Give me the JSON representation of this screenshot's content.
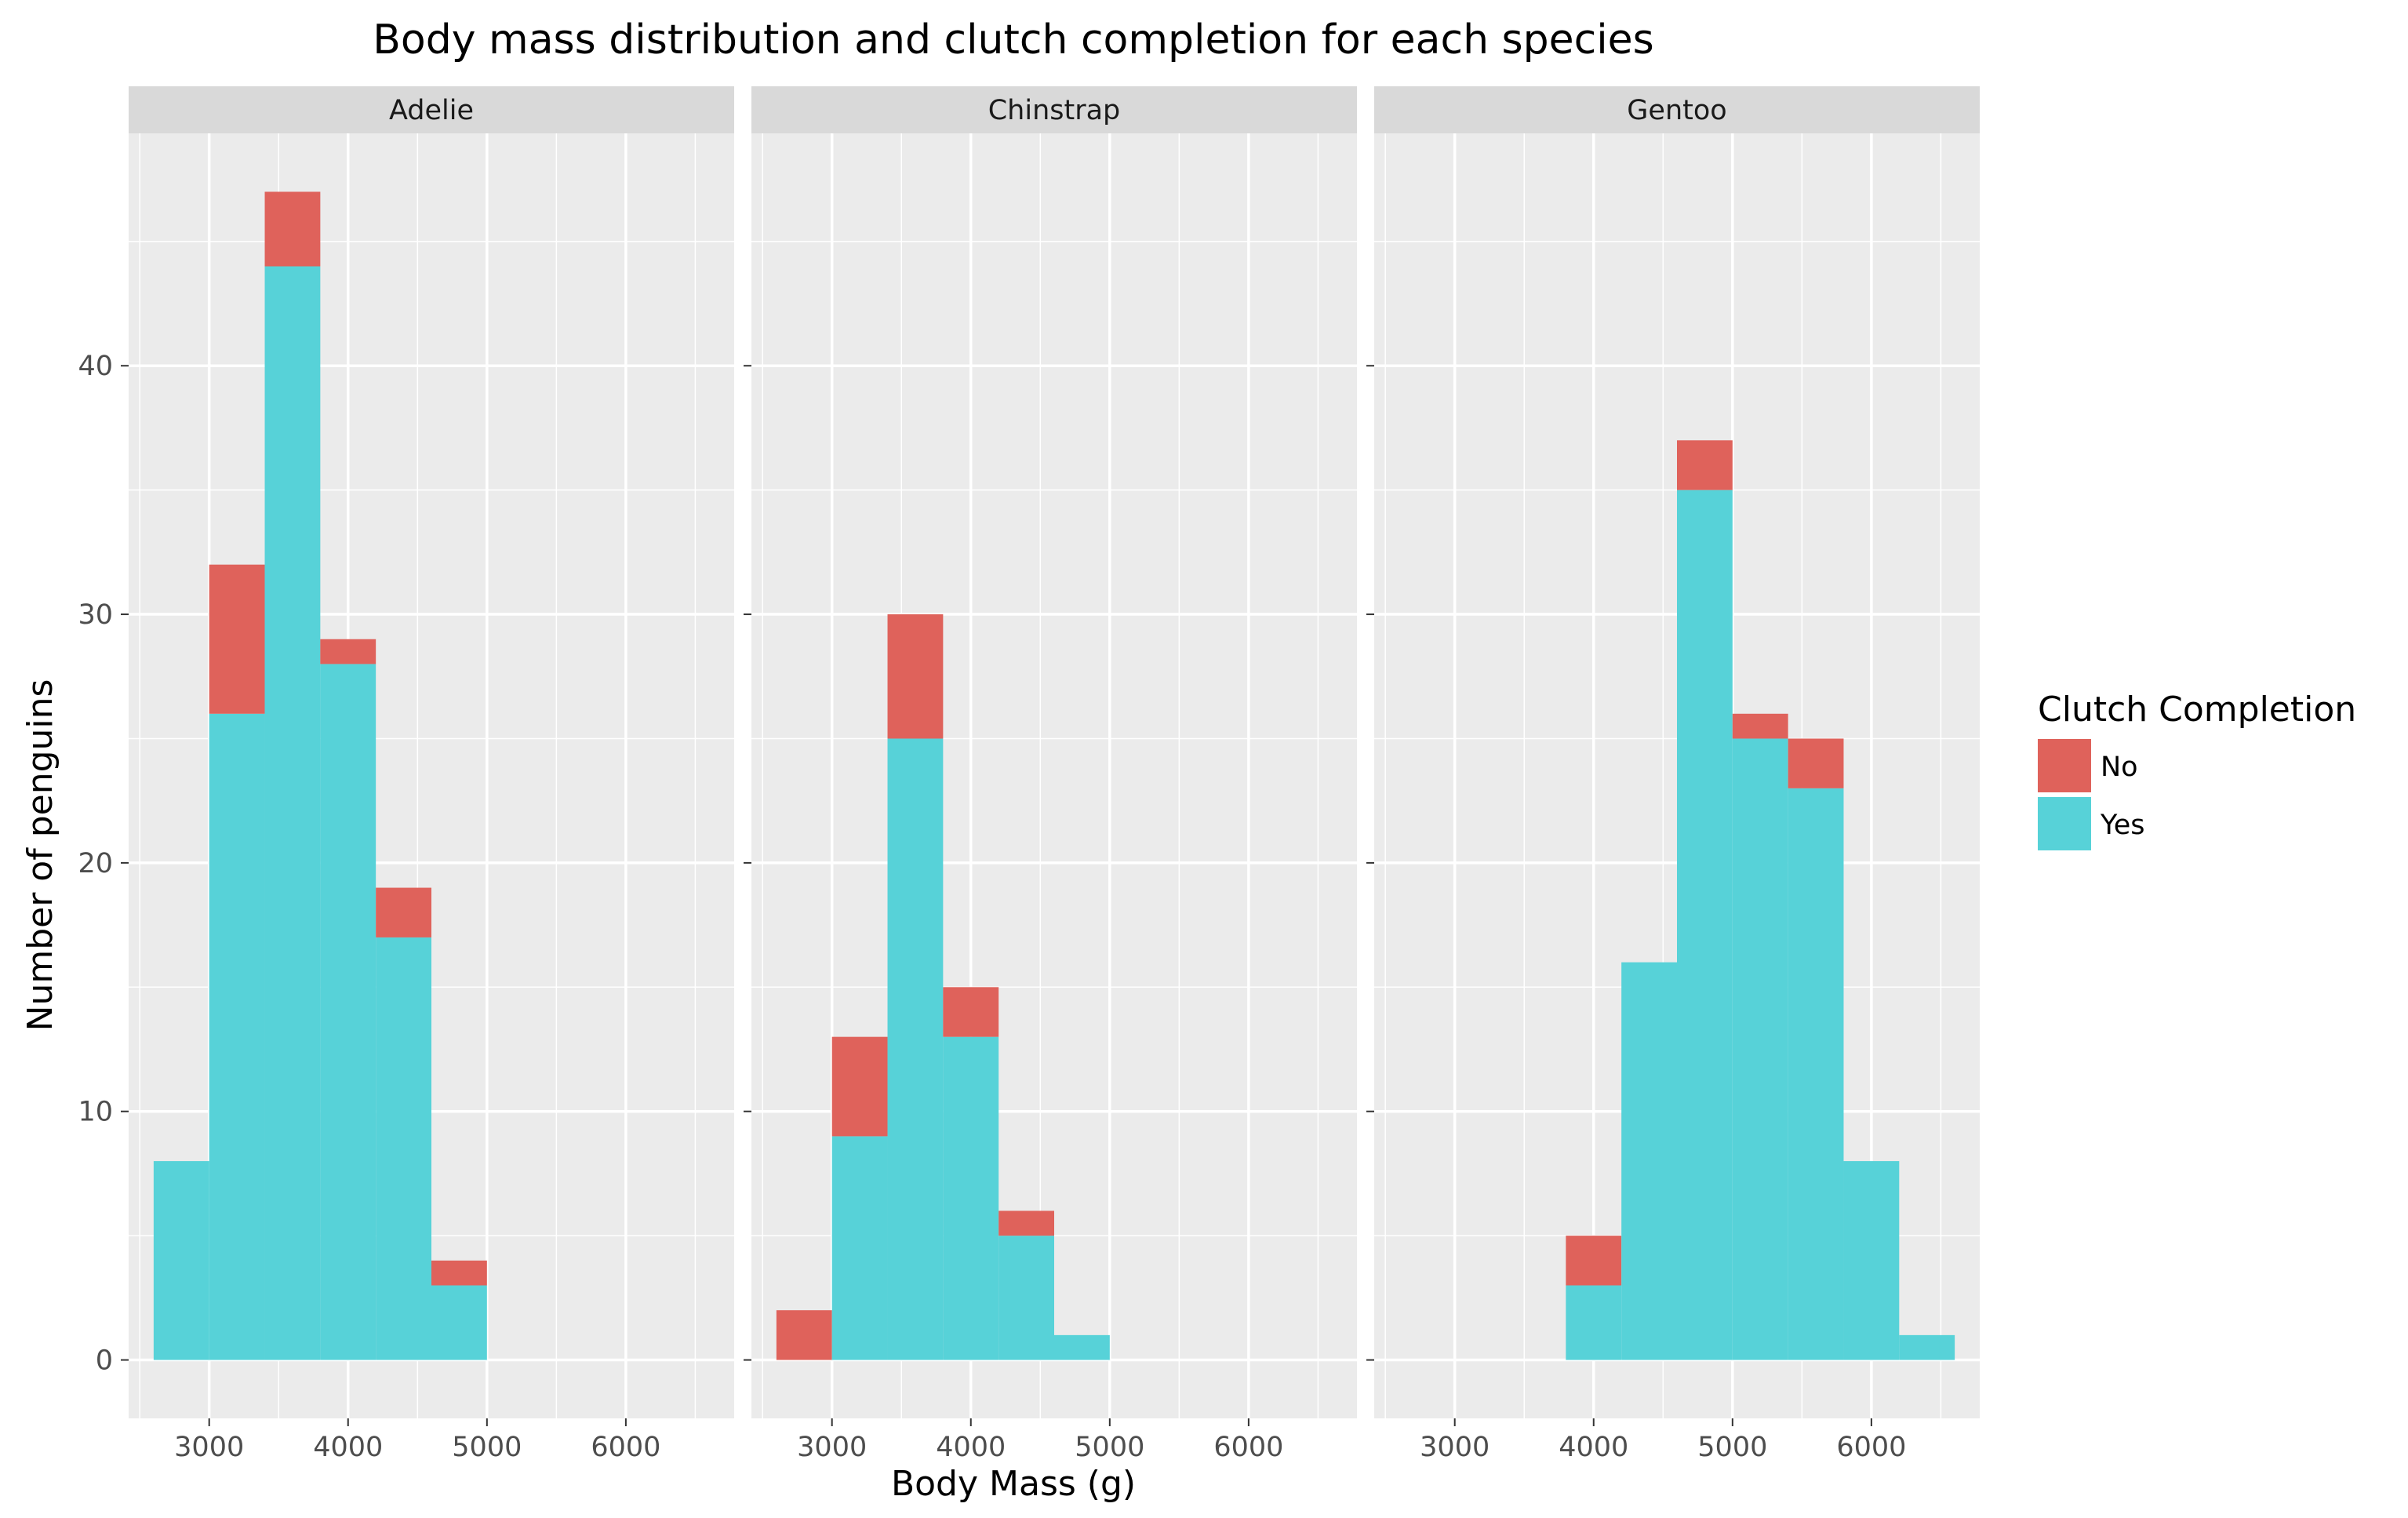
{
  "chart_data": {
    "type": "bar",
    "title": "Body mass distribution and clutch completion for each species",
    "xlabel": "Body Mass (g)",
    "ylabel": "Number of penguins",
    "xlim": [
      2420,
      6780
    ],
    "ylim": [
      -2.35,
      49.35
    ],
    "x_ticks": [
      3000,
      4000,
      5000,
      6000
    ],
    "y_ticks": [
      0,
      10,
      20,
      30,
      40
    ],
    "bin_width": 400,
    "stacked": true,
    "grid": true,
    "legend": {
      "title": "Clutch Completion",
      "position": "right",
      "entries": [
        "No",
        "Yes"
      ]
    },
    "colors": {
      "No": "#df625b",
      "Yes": "#57d2d8",
      "panel_bg": "#ebebeb",
      "strip_bg": "#d9d9d9",
      "grid": "#ffffff"
    },
    "panels": [
      {
        "name": "Adelie",
        "bin_starts": [
          2600,
          3000,
          3400,
          3800,
          4200,
          4600
        ],
        "series": [
          {
            "name": "Yes",
            "values": [
              8,
              26,
              44,
              28,
              17,
              3
            ]
          },
          {
            "name": "No",
            "values": [
              0,
              6,
              3,
              1,
              2,
              1
            ]
          }
        ]
      },
      {
        "name": "Chinstrap",
        "bin_starts": [
          2600,
          3000,
          3400,
          3800,
          4200,
          4600
        ],
        "series": [
          {
            "name": "Yes",
            "values": [
              0,
              9,
              25,
              13,
              5,
              1
            ]
          },
          {
            "name": "No",
            "values": [
              2,
              4,
              5,
              2,
              1,
              0
            ]
          }
        ]
      },
      {
        "name": "Gentoo",
        "bin_starts": [
          3800,
          4200,
          4600,
          5000,
          5400,
          5800,
          6200
        ],
        "series": [
          {
            "name": "Yes",
            "values": [
              3,
              16,
              35,
              25,
              23,
              8,
              1
            ]
          },
          {
            "name": "No",
            "values": [
              2,
              0,
              2,
              1,
              2,
              0,
              0
            ]
          }
        ]
      }
    ]
  }
}
